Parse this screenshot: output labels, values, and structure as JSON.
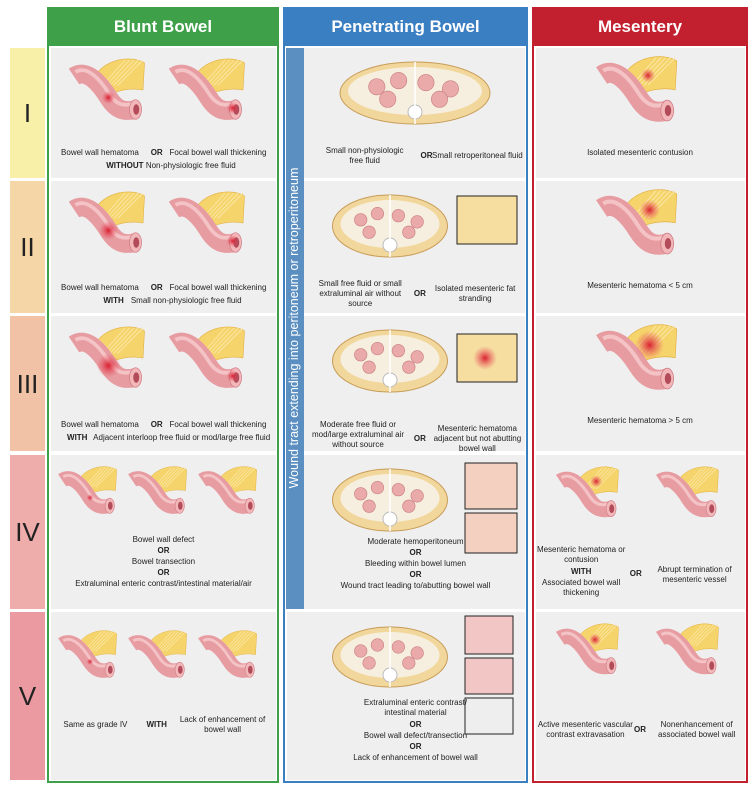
{
  "columns": [
    {
      "title": "Blunt Bowel"
    },
    {
      "title": "Penetrating Bowel"
    },
    {
      "title": "Mesentery"
    }
  ],
  "side_label": "Wound tract extending into peritoneum or retroperitoneum",
  "rows": [
    {
      "grade": "I",
      "blunt": [
        "Bowel wall hematoma",
        "OR",
        "Focal bowel wall thickening",
        "WITHOUT",
        "Non-physiologic free fluid"
      ],
      "penetrating": [
        "Small non-physiologic free fluid",
        "OR",
        "Small retroperitoneal fluid"
      ],
      "mesentery": [
        "Isolated mesenteric contusion"
      ]
    },
    {
      "grade": "II",
      "blunt": [
        "Bowel wall hematoma",
        "OR",
        "Focal bowel wall thickening",
        "WITH",
        "Small non-physiologic free fluid"
      ],
      "penetrating": [
        "Small free fluid or small extraluminal air without source",
        "OR",
        "Isolated mesenteric fat stranding"
      ],
      "mesentery": [
        "Mesenteric hematoma < 5 cm"
      ]
    },
    {
      "grade": "III",
      "blunt": [
        "Bowel wall hematoma",
        "OR",
        "Focal bowel wall thickening",
        "WITH",
        "Adjacent interloop free fluid or mod/large free fluid"
      ],
      "penetrating": [
        "Moderate free fluid or mod/large extraluminal air without source",
        "OR",
        "Mesenteric hematoma adjacent but not abutting bowel wall"
      ],
      "mesentery": [
        "Mesenteric hematoma > 5 cm"
      ]
    },
    {
      "grade": "IV",
      "blunt": [
        "Bowel wall defect",
        "OR",
        "Bowel transection",
        "OR",
        "Extraluminal enteric contrast/intestinal material/air"
      ],
      "penetrating": [
        "Moderate hemoperitoneum",
        "OR",
        "Bleeding within bowel lumen",
        "OR",
        "Wound tract leading to/abutting bowel wall"
      ],
      "mesentery": [
        "Mesenteric hematoma or contusion",
        "WITH",
        "Associated bowel wall thickening",
        "OR",
        "Abrupt termination of mesenteric vessel"
      ]
    },
    {
      "grade": "V",
      "blunt": [
        "Same as grade IV",
        "WITH",
        "Lack of enhancement of bowel wall"
      ],
      "penetrating": [
        "Extraluminal enteric contrast/ intestinal material",
        "OR",
        "Bowel wall defect/transection",
        "OR",
        "Lack of enhancement of bowel wall"
      ],
      "mesentery": [
        "Active mesenteric vascular contrast extravasation",
        "OR",
        "Nonenhancement of associated bowel wall"
      ]
    }
  ]
}
